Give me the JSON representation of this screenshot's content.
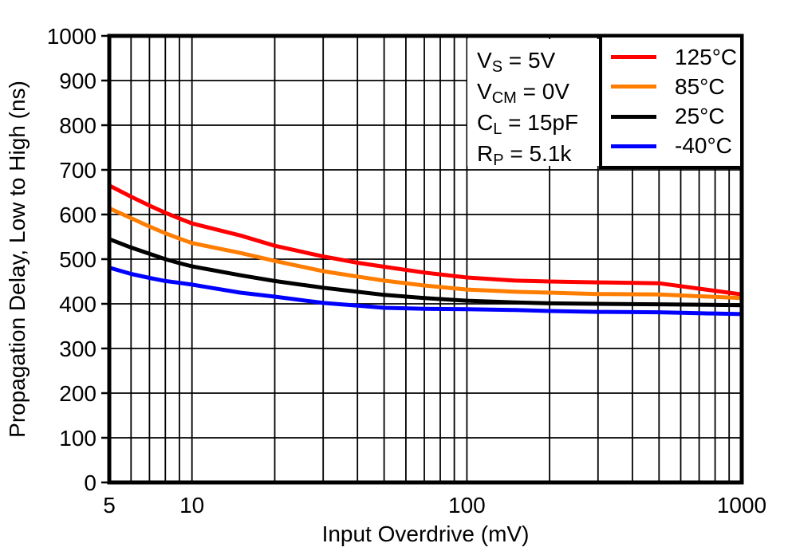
{
  "figure": {
    "x_title": "Input Overdrive (mV)",
    "y_title": "Propagation Delay, Low to High (ns)"
  },
  "chart_data": {
    "type": "line",
    "title": "",
    "xlabel": "Input Overdrive (mV)",
    "ylabel": "Propagation Delay, Low to High (ns)",
    "xscale": "log",
    "xlim": [
      5,
      1000
    ],
    "ylim": [
      0,
      1000
    ],
    "grid": true,
    "legend_position": "top-right-inside",
    "x_tick_labels": [
      5,
      10,
      100,
      1000
    ],
    "x_gridlines": [
      6,
      7,
      8,
      9,
      10,
      20,
      30,
      40,
      50,
      60,
      70,
      80,
      90,
      100,
      200,
      300,
      400,
      500,
      600,
      700,
      800,
      900
    ],
    "y_ticks": [
      0,
      100,
      200,
      300,
      400,
      500,
      600,
      700,
      800,
      900,
      1000
    ],
    "x": [
      5,
      6,
      7,
      8,
      9,
      10,
      15,
      20,
      30,
      40,
      50,
      70,
      100,
      150,
      200,
      300,
      500,
      700,
      1000
    ],
    "series": [
      {
        "name": "125°C",
        "color": "#FF0000",
        "values": [
          665,
          640,
          620,
          604,
          591,
          580,
          553,
          530,
          506,
          492,
          483,
          470,
          459,
          452,
          450,
          448,
          446,
          434,
          421
        ]
      },
      {
        "name": "85°C",
        "color": "#FF7D00",
        "values": [
          614,
          592,
          573,
          558,
          546,
          536,
          514,
          496,
          473,
          461,
          452,
          441,
          432,
          427,
          425,
          422,
          421,
          417,
          413
        ]
      },
      {
        "name": "25°C",
        "color": "#000000",
        "values": [
          545,
          526,
          512,
          500,
          491,
          484,
          464,
          451,
          436,
          427,
          420,
          413,
          407,
          403,
          401,
          400,
          399,
          398,
          397
        ]
      },
      {
        "name": "-40°C",
        "color": "#0000FF",
        "values": [
          481,
          467,
          458,
          451,
          447,
          443,
          425,
          416,
          402,
          396,
          391,
          389,
          388,
          386,
          384,
          382,
          381,
          379,
          377
        ]
      }
    ],
    "annotations": [
      {
        "sym": "V",
        "sub": "S",
        "rest": " = 5V"
      },
      {
        "sym": "V",
        "sub": "CM",
        "rest": " = 0V"
      },
      {
        "sym": "C",
        "sub": "L",
        "rest": " = 15pF"
      },
      {
        "sym": "R",
        "sub": "P",
        "rest": " = 5.1k"
      }
    ]
  }
}
